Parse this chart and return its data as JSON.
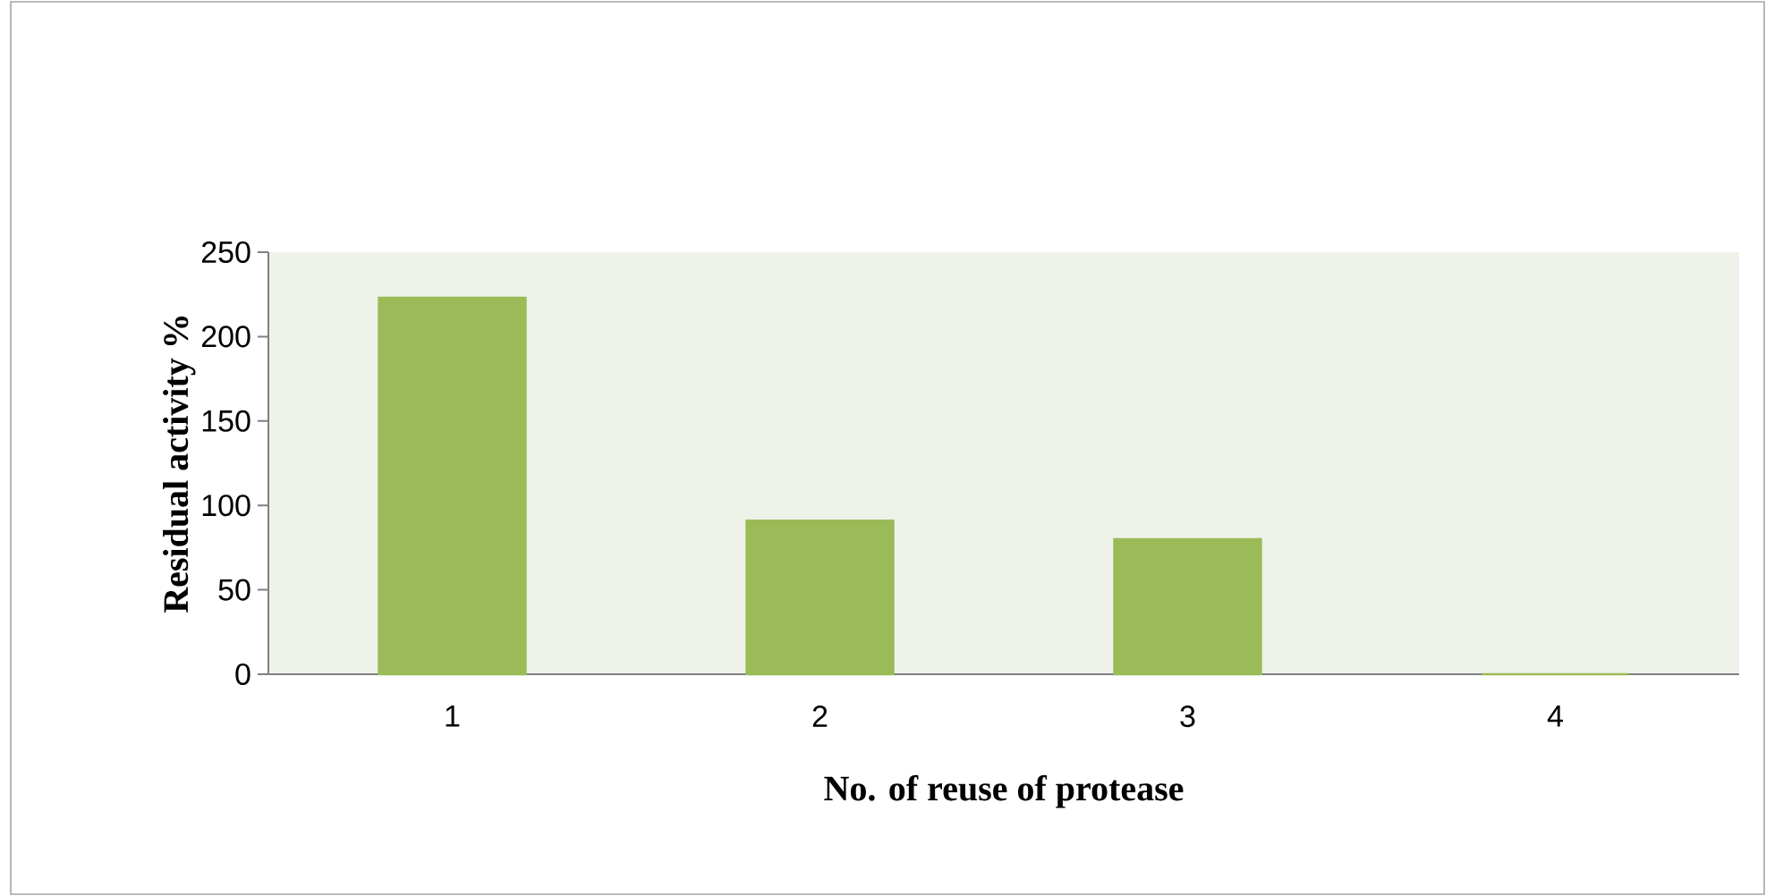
{
  "chart_data": {
    "type": "bar",
    "xlabel": "No. of reuse of protease",
    "ylabel": "Residual activity %",
    "categories": [
      "1",
      "2",
      "3",
      "4"
    ],
    "values": [
      223,
      91,
      80,
      0
    ],
    "color": "#9bbb59",
    "ylim": [
      0,
      250
    ],
    "yticks": [
      0,
      50,
      100,
      150,
      200,
      250
    ]
  }
}
